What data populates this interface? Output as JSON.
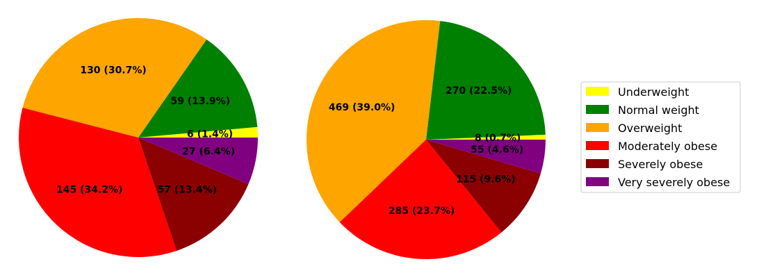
{
  "chart_data": [
    {
      "type": "pie",
      "categories": [
        "Underweight",
        "Normal weight",
        "Overweight",
        "Moderately obese",
        "Severely obese",
        "Very severely obese"
      ],
      "values": [
        6,
        59,
        130,
        145,
        57,
        27
      ],
      "labels": [
        "6 (1.4%)",
        "59 (13.9%)",
        "130 (30.7%)",
        "145 (34.2%)",
        "57 (13.4%)",
        "27 (6.4%)"
      ]
    },
    {
      "type": "pie",
      "categories": [
        "Underweight",
        "Normal weight",
        "Overweight",
        "Moderately obese",
        "Severely obese",
        "Very severely obese"
      ],
      "values": [
        8,
        270,
        469,
        285,
        115,
        55
      ],
      "labels": [
        "8 (0.7%)",
        "270 (22.5%)",
        "469 (39.0%)",
        "285 (23.7%)",
        "115 (9.6%)",
        "55 (4.6%)"
      ]
    }
  ],
  "legend": {
    "placement": "right",
    "entries": [
      "Underweight",
      "Normal weight",
      "Overweight",
      "Moderately obese",
      "Severely obese",
      "Very severely obese"
    ]
  },
  "colors": [
    "#ffff00",
    "#008000",
    "#ffa500",
    "#ff0000",
    "#8b0000",
    "#800080"
  ]
}
